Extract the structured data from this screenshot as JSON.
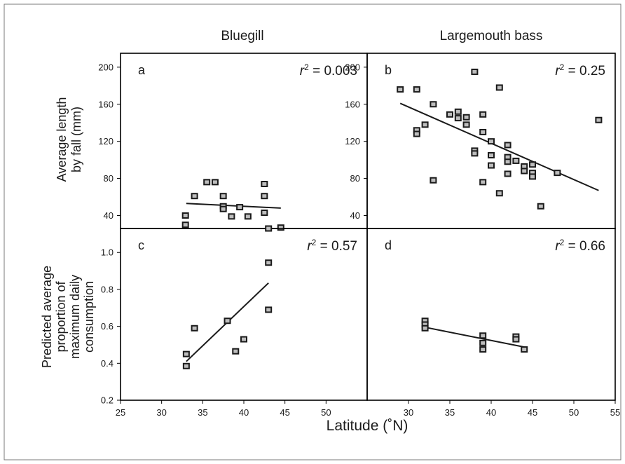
{
  "figure": {
    "col_titles": [
      "Bluegill",
      "Largemouth bass"
    ],
    "xlabel": "Latitude (˚N)",
    "ylabel_top": [
      "Average length",
      "by fall (mm)"
    ],
    "ylabel_bottom": [
      "Predicted average",
      "proportion of",
      "maximum daily",
      "consumption"
    ]
  },
  "chart_data": [
    {
      "panel": "a",
      "type": "scatter",
      "species": "Bluegill",
      "r2_label": "r",
      "r2_value": " = 0.003",
      "xlim": [
        25,
        55
      ],
      "ylim": [
        26,
        215
      ],
      "yticks": [
        40,
        80,
        120,
        160,
        200
      ],
      "points": [
        [
          32.9,
          40
        ],
        [
          32.9,
          30
        ],
        [
          34,
          61
        ],
        [
          35.5,
          76
        ],
        [
          36.5,
          76
        ],
        [
          37.5,
          61
        ],
        [
          37.5,
          50
        ],
        [
          37.5,
          47
        ],
        [
          38.5,
          39
        ],
        [
          39.5,
          49
        ],
        [
          40.5,
          39
        ],
        [
          42.5,
          74
        ],
        [
          42.5,
          61
        ],
        [
          42.5,
          43
        ],
        [
          44.5,
          27
        ]
      ],
      "fit": [
        [
          33,
          53
        ],
        [
          44.5,
          48
        ]
      ]
    },
    {
      "panel": "b",
      "type": "scatter",
      "species": "Largemouth bass",
      "r2_label": "r",
      "r2_value": " = 0.25",
      "xlim": [
        25,
        55
      ],
      "ylim": [
        26,
        215
      ],
      "yticks": [
        40,
        80,
        120,
        160,
        200
      ],
      "points": [
        [
          29,
          176
        ],
        [
          31,
          176
        ],
        [
          31,
          132
        ],
        [
          31,
          128
        ],
        [
          32,
          138
        ],
        [
          33,
          160
        ],
        [
          33,
          78
        ],
        [
          35,
          149
        ],
        [
          36,
          152
        ],
        [
          36,
          145
        ],
        [
          37,
          146
        ],
        [
          37,
          138
        ],
        [
          38,
          195
        ],
        [
          38,
          110
        ],
        [
          38,
          107
        ],
        [
          39,
          149
        ],
        [
          39,
          130
        ],
        [
          39,
          76
        ],
        [
          40,
          120
        ],
        [
          40,
          105
        ],
        [
          40,
          94
        ],
        [
          41,
          178
        ],
        [
          41,
          64
        ],
        [
          42,
          116
        ],
        [
          42,
          103
        ],
        [
          42,
          98
        ],
        [
          42,
          85
        ],
        [
          43,
          99
        ],
        [
          44,
          93
        ],
        [
          44,
          88
        ],
        [
          45,
          95
        ],
        [
          45,
          86
        ],
        [
          45,
          82
        ],
        [
          46,
          50
        ],
        [
          48,
          86
        ],
        [
          53,
          143
        ]
      ],
      "fit": [
        [
          29,
          161
        ],
        [
          53,
          67
        ]
      ]
    },
    {
      "panel": "c",
      "type": "scatter",
      "species": "Bluegill",
      "r2_label": "r",
      "r2_value": " = 0.57",
      "xlim": [
        25,
        55
      ],
      "ylim": [
        0.2,
        1.13
      ],
      "yticks": [
        0.2,
        0.4,
        0.6,
        0.8,
        1.0
      ],
      "xticks": [
        25,
        30,
        35,
        40,
        45,
        50
      ],
      "points": [
        [
          33,
          0.45
        ],
        [
          33,
          0.385
        ],
        [
          34,
          0.59
        ],
        [
          38,
          0.63
        ],
        [
          39,
          0.465
        ],
        [
          40,
          0.53
        ],
        [
          43,
          1.13
        ],
        [
          43,
          0.945
        ],
        [
          43,
          0.69
        ]
      ],
      "fit": [
        [
          33,
          0.41
        ],
        [
          43,
          0.835
        ]
      ]
    },
    {
      "panel": "d",
      "type": "scatter",
      "species": "Largemouth bass",
      "r2_label": "r",
      "r2_value": " = 0.66",
      "xlim": [
        25,
        55
      ],
      "ylim": [
        0.2,
        1.13
      ],
      "xticks": [
        30,
        35,
        40,
        45,
        50,
        55
      ],
      "points": [
        [
          32,
          0.63
        ],
        [
          32,
          0.61
        ],
        [
          32,
          0.59
        ],
        [
          39,
          0.55
        ],
        [
          39,
          0.51
        ],
        [
          39,
          0.475
        ],
        [
          43,
          0.545
        ],
        [
          43,
          0.53
        ],
        [
          44,
          0.475
        ]
      ],
      "fit": [
        [
          32,
          0.595
        ],
        [
          44,
          0.488
        ]
      ]
    }
  ],
  "colors": {
    "ink": "#1a1a1a",
    "frame": "#000000",
    "background": "#ffffff"
  }
}
